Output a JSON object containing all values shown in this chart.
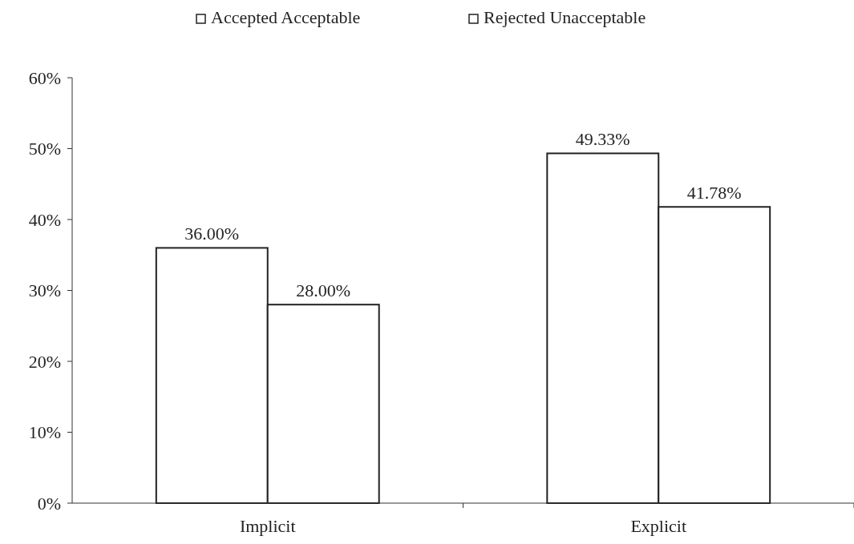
{
  "chart_data": {
    "type": "bar",
    "categories": [
      "Implicit",
      "Explicit"
    ],
    "series": [
      {
        "name": "Accepted Acceptable",
        "color": "#ffffff",
        "values": [
          36.0,
          49.33
        ],
        "value_labels": [
          "36.00%",
          "49.33%"
        ]
      },
      {
        "name": "Rejected Unacceptable",
        "color": "#ffffff",
        "values": [
          28.0,
          41.78
        ],
        "value_labels": [
          "28.00%",
          "41.78%"
        ]
      }
    ],
    "ylim": [
      0,
      60
    ],
    "yticks": [
      {
        "value": 0,
        "label": "0%"
      },
      {
        "value": 10,
        "label": "10%"
      },
      {
        "value": 20,
        "label": "20%"
      },
      {
        "value": 30,
        "label": "30%"
      },
      {
        "value": 40,
        "label": "40%"
      },
      {
        "value": 50,
        "label": "50%"
      },
      {
        "value": 60,
        "label": "60%"
      }
    ],
    "legend": "top",
    "grid": false
  }
}
